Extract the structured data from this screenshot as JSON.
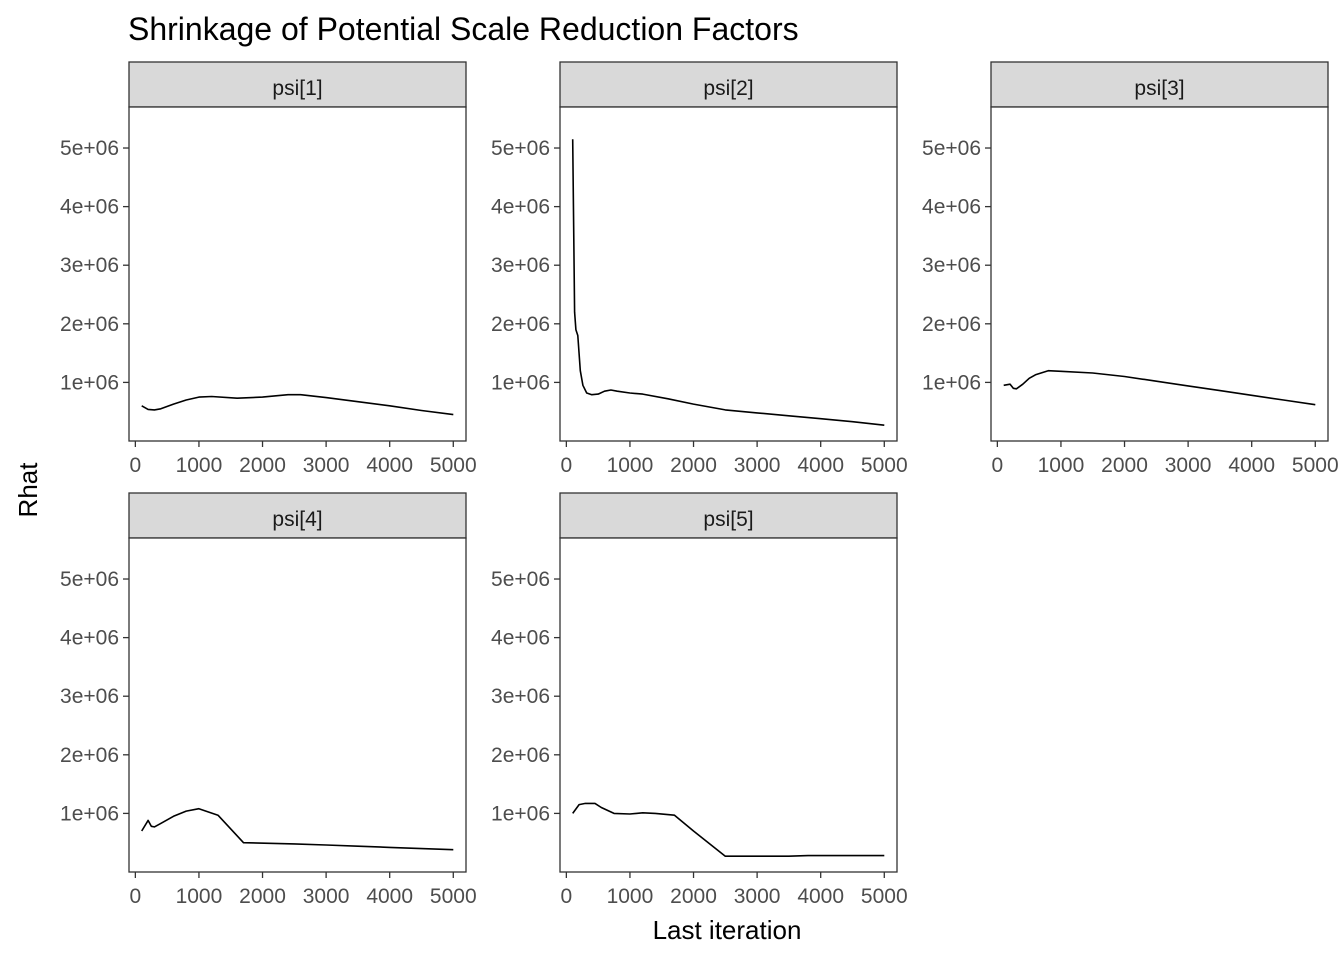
{
  "chart_data": {
    "type": "line",
    "title": "Shrinkage of Potential Scale Reduction Factors",
    "xlabel": "Last iteration",
    "ylabel": "Rhat",
    "xlim": [
      -100,
      5200
    ],
    "ylim": [
      0,
      5700000
    ],
    "x_ticks": [
      0,
      1000,
      2000,
      3000,
      4000,
      5000
    ],
    "x_tick_labels": [
      "0",
      "1000",
      "2000",
      "3000",
      "4000",
      "5000"
    ],
    "y_ticks": [
      1000000,
      2000000,
      3000000,
      4000000,
      5000000
    ],
    "y_tick_labels": [
      "1e+06",
      "2e+06",
      "3e+06",
      "4e+06",
      "5e+06"
    ],
    "grid": false,
    "facets": [
      {
        "name": "psi[1]",
        "x": [
          100,
          200,
          300,
          400,
          600,
          800,
          1000,
          1200,
          1600,
          2000,
          2400,
          2600,
          3000,
          3500,
          4000,
          4500,
          5000
        ],
        "y": [
          600000,
          540000,
          530000,
          550000,
          630000,
          700000,
          750000,
          760000,
          730000,
          750000,
          790000,
          790000,
          740000,
          670000,
          600000,
          520000,
          450000
        ]
      },
      {
        "name": "psi[2]",
        "x": [
          100,
          130,
          150,
          180,
          220,
          260,
          320,
          400,
          500,
          600,
          700,
          800,
          1000,
          1200,
          1600,
          2000,
          2500,
          3000,
          3500,
          4000,
          4500,
          5000
        ],
        "y": [
          5150000,
          2200000,
          1900000,
          1800000,
          1200000,
          950000,
          820000,
          790000,
          800000,
          850000,
          870000,
          850000,
          820000,
          800000,
          720000,
          630000,
          530000,
          480000,
          430000,
          380000,
          330000,
          270000
        ]
      },
      {
        "name": "psi[3]",
        "x": [
          100,
          200,
          250,
          300,
          400,
          500,
          600,
          800,
          1000,
          1500,
          2000,
          2500,
          3000,
          3500,
          4000,
          4500,
          5000
        ],
        "y": [
          950000,
          970000,
          900000,
          890000,
          970000,
          1070000,
          1130000,
          1200000,
          1190000,
          1160000,
          1100000,
          1020000,
          940000,
          860000,
          780000,
          700000,
          620000
        ]
      },
      {
        "name": "psi[4]",
        "x": [
          100,
          200,
          250,
          300,
          400,
          600,
          800,
          1000,
          1300,
          1700,
          2500,
          3000,
          3500,
          4000,
          4500,
          5000
        ],
        "y": [
          700000,
          880000,
          780000,
          770000,
          830000,
          950000,
          1040000,
          1080000,
          970000,
          500000,
          480000,
          460000,
          440000,
          420000,
          400000,
          380000
        ]
      },
      {
        "name": "psi[5]",
        "x": [
          100,
          200,
          300,
          450,
          550,
          750,
          1000,
          1200,
          1400,
          1700,
          2000,
          2500,
          3000,
          3500,
          3800,
          4500,
          5000
        ],
        "y": [
          1000000,
          1150000,
          1170000,
          1170000,
          1100000,
          1000000,
          990000,
          1010000,
          1000000,
          970000,
          700000,
          270000,
          270000,
          270000,
          280000,
          280000,
          280000
        ]
      }
    ]
  }
}
